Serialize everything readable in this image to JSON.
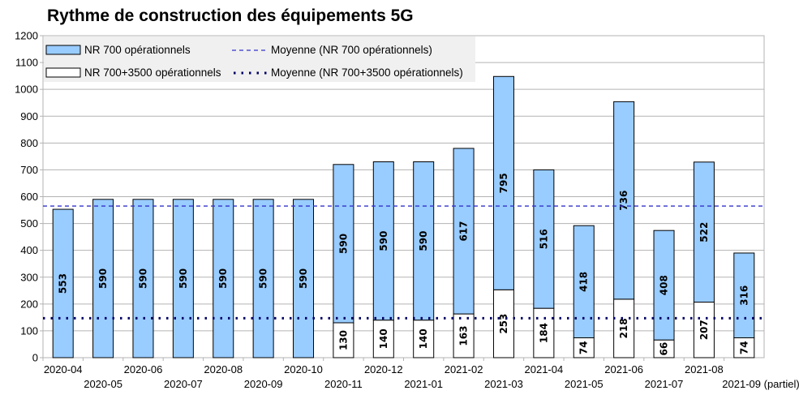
{
  "chart_data": {
    "type": "bar",
    "title": "Rythme de construction des équipements 5G",
    "xlabel": "",
    "ylabel": "",
    "ylim": [
      0,
      1200
    ],
    "yticks": [
      0,
      100,
      200,
      300,
      400,
      500,
      600,
      700,
      800,
      900,
      1000,
      1100,
      1200
    ],
    "grid": true,
    "stacked": true,
    "legend_position": "top-left",
    "categories": [
      "2020-04",
      "2020-05",
      "2020-06",
      "2020-07",
      "2020-08",
      "2020-09",
      "2020-10",
      "2020-11",
      "2020-12",
      "2021-01",
      "2021-02",
      "2021-03",
      "2021-04",
      "2021-05",
      "2021-06",
      "2021-07",
      "2021-08",
      "2021-09 (partiel)"
    ],
    "series": [
      {
        "name": "NR 700+3500 opérationnels",
        "color": "#ffffff",
        "values": [
          0,
          0,
          0,
          0,
          0,
          0,
          0,
          130,
          140,
          140,
          163,
          253,
          184,
          74,
          218,
          66,
          207,
          74
        ],
        "labels": [
          "",
          "",
          "",
          "",
          "",
          "",
          "",
          "130",
          "140",
          "140",
          "163",
          "253",
          "184",
          "74",
          "218",
          "66",
          "207",
          "74"
        ]
      },
      {
        "name": "NR 700 opérationnels",
        "color": "#99ccff",
        "values": [
          553,
          590,
          590,
          590,
          590,
          590,
          590,
          590,
          590,
          590,
          617,
          795,
          516,
          418,
          736,
          408,
          522,
          316
        ],
        "labels": [
          "553",
          "590",
          "590",
          "590",
          "590",
          "590",
          "590",
          "590",
          "590",
          "590",
          "617",
          "795",
          "516",
          "418",
          "736",
          "408",
          "522",
          "316"
        ]
      }
    ],
    "reference_lines": [
      {
        "name": "Moyenne (NR 700 opérationnels)",
        "value": 565,
        "style": "dashed",
        "color": "#3333cc"
      },
      {
        "name": "Moyenne (NR 700+3500 opérationnels)",
        "value": 147,
        "style": "dotted",
        "color": "#000066"
      }
    ]
  }
}
